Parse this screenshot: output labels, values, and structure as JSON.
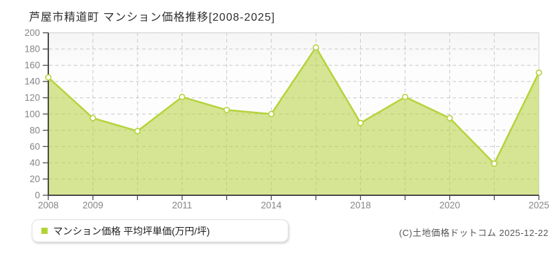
{
  "title": "芦屋市精道町 マンション価格推移[2008-2025]",
  "legend": {
    "marker_color": "#b2d434",
    "label": "マンション価格 平均坪単価(万円/坪)"
  },
  "copyright": "(C)土地価格ドットコム 2025-12-22",
  "chart_data": {
    "type": "area",
    "title": "芦屋市精道町 マンション価格推移[2008-2025]",
    "series_name": "マンション価格 平均坪単価(万円/坪)",
    "categories": [
      "2008",
      "2009",
      "",
      "2011",
      "",
      "2014",
      "",
      "2018",
      "",
      "2020",
      "",
      "2025"
    ],
    "values": [
      145,
      95,
      79,
      121,
      105,
      100,
      182,
      89,
      121,
      95,
      39,
      151
    ],
    "xlabel": "",
    "ylabel": "",
    "ylim": [
      0,
      200
    ],
    "y_tick_step": 20,
    "grid": true,
    "grid_style": "dashed",
    "legend_position": "bottom-left",
    "line_color": "#b5d33b",
    "fill_color": "rgba(180,210,60,0.55)",
    "marker_fill": "#ffffff",
    "axis_color": "#4a4a4a",
    "border_color": "#cfcfcf",
    "grid_color": "#c7c7c7",
    "tick_label_color": "#858585"
  }
}
